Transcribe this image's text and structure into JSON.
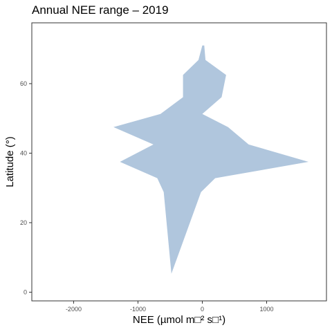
{
  "chart_data": {
    "type": "area",
    "title": "Annual NEE range – 2019",
    "xlabel": "NEE (µmol m□² s□¹)",
    "ylabel": "Latitude (°)",
    "xlim": [
      -2650,
      1930
    ],
    "ylim": [
      -2.5,
      77.5
    ],
    "xticks": [
      -2000,
      -1000,
      0,
      1000
    ],
    "xtick_labels": [
      "-2000",
      "-1000",
      "0",
      "1000"
    ],
    "yticks": [
      0,
      20,
      40,
      60
    ],
    "ytick_labels": [
      "0",
      "20",
      "40",
      "60"
    ],
    "grid": false,
    "legend": "none",
    "fill_color": "#b0c6dd",
    "series": [
      {
        "lat": [
          5.3,
          28.8,
          32.8,
          37.5,
          42.5,
          47.5,
          51.3,
          56.1,
          62.5,
          66.8,
          71.0
        ],
        "min": [
          -480,
          -600,
          -700,
          -1280,
          -760,
          -1380,
          -650,
          -300,
          -300,
          -60,
          0
        ],
        "max": [
          -480,
          -20,
          200,
          1650,
          720,
          400,
          0,
          300,
          370,
          50,
          30
        ]
      }
    ]
  }
}
